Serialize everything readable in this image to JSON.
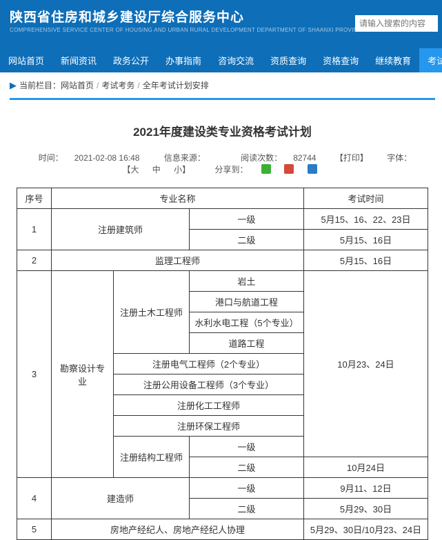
{
  "header": {
    "title": "陕西省住房和城乡建设厅综合服务中心",
    "sub": "COMPREHENSIVE SERVICE CENTER OF HOUSING AND URBAN RURAL DEVELOPMENT DEPARTMENT OF SHAANXI PROVINCE",
    "search_placeholder": "请输入搜索的内容"
  },
  "nav": {
    "items": [
      "网站首页",
      "新闻资讯",
      "政务公开",
      "办事指南",
      "咨询交流",
      "资质查询",
      "资格查询",
      "继续教育",
      "考试考务"
    ],
    "active_index": 8
  },
  "breadcrumb": {
    "label": "当前栏目：",
    "parts": [
      "网站首页",
      "考试考务",
      "全年考试计划安排"
    ]
  },
  "article": {
    "title": "2021年度建设类专业资格考试计划",
    "meta": {
      "time_label": "时间：",
      "time": "2021-02-08 16:48",
      "source_label": "信息来源：",
      "source": "",
      "views_label": "阅读次数：",
      "views": "82744",
      "print": "【打印】",
      "font_label": "字体：",
      "font_l": "【大",
      "font_m": "中",
      "font_s": "小】",
      "share_label": "分享到："
    }
  },
  "table": {
    "headers": {
      "seq": "序号",
      "major": "专业名称",
      "exam_time": "考试时间"
    },
    "rows": {
      "r1": {
        "seq": "1",
        "name": "注册建筑师",
        "lv1": "一级",
        "lv2": "二级",
        "t1": "5月15、16、22、23日",
        "t2": "5月15、16日"
      },
      "r2": {
        "seq": "2",
        "name": "监理工程师",
        "t": "5月15、16日"
      },
      "r3": {
        "seq": "3",
        "name": "勘察设计专业",
        "civil": "注册土木工程师",
        "civil_subs": [
          "岩土",
          "港口与航道工程",
          "水利水电工程（5个专业）",
          "道路工程"
        ],
        "elec": "注册电气工程师（2个专业）",
        "util": "注册公用设备工程师（3个专业）",
        "chem": "注册化工工程师",
        "env": "注册环保工程师",
        "struct": "注册结构工程师",
        "struct_lv1": "一级",
        "struct_lv2": "二级",
        "t_main": "10月23、24日",
        "t_struct2": "10月24日"
      },
      "r4": {
        "seq": "4",
        "name": "建造师",
        "lv1": "一级",
        "lv2": "二级",
        "t1": "9月11、12日",
        "t2": "5月29、30日"
      },
      "r5": {
        "seq": "5",
        "name": "房地产经纪人、房地产经纪人协理",
        "t": "5月29、30日/10月23、24日"
      }
    }
  }
}
